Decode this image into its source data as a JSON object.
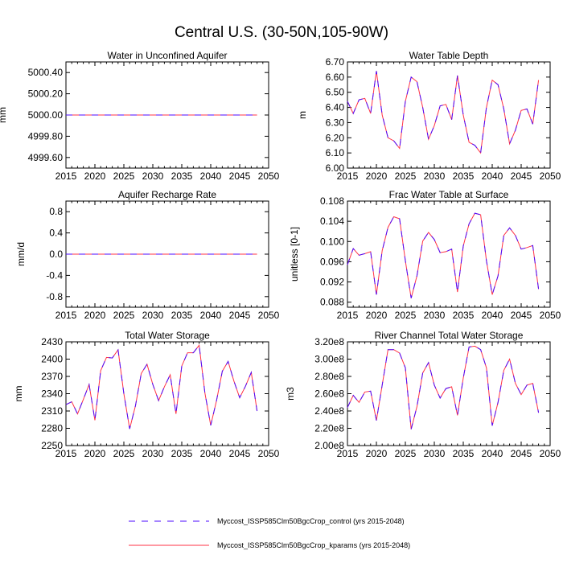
{
  "title": "Central U.S. (30-50N,105-90W)",
  "colors": {
    "control": "#4b0aff",
    "kparams": "#ff3344"
  },
  "legend": [
    {
      "label": "Myccost_ISSP585Clm50BgcCrop_control (yrs 2015-2048)",
      "style": "dashed",
      "color": "#4b0aff"
    },
    {
      "label": "Myccost_ISSP585Clm50BgcCrop_kparams (yrs 2015-2048)",
      "style": "solid",
      "color": "#ff3344"
    }
  ],
  "chart_data": [
    {
      "type": "line",
      "title": "Water in Unconfined Aquifer",
      "ylabel": "mm",
      "xlim": [
        2015,
        2050
      ],
      "xticks": [
        "2015",
        "2020",
        "2025",
        "2030",
        "2035",
        "2040",
        "2045",
        "2050"
      ],
      "ylim": [
        4999.5,
        5000.5
      ],
      "yticks": [
        4999.6,
        4999.8,
        5000.0,
        5000.2,
        5000.4
      ],
      "ytick_labels": [
        "4999.60",
        "4999.80",
        "5000.00",
        "5000.20",
        "5000.40"
      ],
      "x": [
        2015,
        2016,
        2017,
        2018,
        2019,
        2020,
        2021,
        2022,
        2023,
        2024,
        2025,
        2026,
        2027,
        2028,
        2029,
        2030,
        2031,
        2032,
        2033,
        2034,
        2035,
        2036,
        2037,
        2038,
        2039,
        2040,
        2041,
        2042,
        2043,
        2044,
        2045,
        2046,
        2047,
        2048
      ],
      "series": [
        {
          "name": "Myccost_ISSP585Clm50BgcCrop_control",
          "values": [
            5000,
            5000,
            5000,
            5000,
            5000,
            5000,
            5000,
            5000,
            5000,
            5000,
            5000,
            5000,
            5000,
            5000,
            5000,
            5000,
            5000,
            5000,
            5000,
            5000,
            5000,
            5000,
            5000,
            5000,
            5000,
            5000,
            5000,
            5000,
            5000,
            5000,
            5000,
            5000,
            5000,
            5000
          ]
        },
        {
          "name": "Myccost_ISSP585Clm50BgcCrop_kparams",
          "values": [
            5000,
            5000,
            5000,
            5000,
            5000,
            5000,
            5000,
            5000,
            5000,
            5000,
            5000,
            5000,
            5000,
            5000,
            5000,
            5000,
            5000,
            5000,
            5000,
            5000,
            5000,
            5000,
            5000,
            5000,
            5000,
            5000,
            5000,
            5000,
            5000,
            5000,
            5000,
            5000,
            5000,
            5000
          ]
        }
      ]
    },
    {
      "type": "line",
      "title": "Water Table Depth",
      "ylabel": "m",
      "xlim": [
        2015,
        2050
      ],
      "xticks": [
        "2015",
        "2020",
        "2025",
        "2030",
        "2035",
        "2040",
        "2045",
        "2050"
      ],
      "ylim": [
        6.0,
        6.7
      ],
      "yticks": [
        6.0,
        6.1,
        6.2,
        6.3,
        6.4,
        6.5,
        6.6,
        6.7
      ],
      "ytick_labels": [
        "6.00",
        "6.10",
        "6.20",
        "6.30",
        "6.40",
        "6.50",
        "6.60",
        "6.70"
      ],
      "x": [
        2015,
        2016,
        2017,
        2018,
        2019,
        2020,
        2021,
        2022,
        2023,
        2024,
        2025,
        2026,
        2027,
        2028,
        2029,
        2030,
        2031,
        2032,
        2033,
        2034,
        2035,
        2036,
        2037,
        2038,
        2039,
        2040,
        2041,
        2042,
        2043,
        2044,
        2045,
        2046,
        2047,
        2048
      ],
      "series": [
        {
          "name": "Myccost_ISSP585Clm50BgcCrop_control",
          "values": [
            6.44,
            6.36,
            6.45,
            6.46,
            6.36,
            6.64,
            6.35,
            6.2,
            6.18,
            6.13,
            6.44,
            6.6,
            6.57,
            6.4,
            6.19,
            6.28,
            6.41,
            6.42,
            6.32,
            6.61,
            6.35,
            6.17,
            6.15,
            6.1,
            6.4,
            6.58,
            6.55,
            6.39,
            6.16,
            6.25,
            6.38,
            6.39,
            6.29,
            6.58
          ]
        },
        {
          "name": "Myccost_ISSP585Clm50BgcCrop_kparams",
          "values": [
            6.44,
            6.36,
            6.45,
            6.46,
            6.36,
            6.64,
            6.35,
            6.2,
            6.18,
            6.13,
            6.44,
            6.6,
            6.57,
            6.4,
            6.19,
            6.28,
            6.41,
            6.42,
            6.32,
            6.61,
            6.35,
            6.17,
            6.15,
            6.1,
            6.4,
            6.58,
            6.55,
            6.39,
            6.16,
            6.25,
            6.38,
            6.39,
            6.29,
            6.58
          ]
        }
      ]
    },
    {
      "type": "line",
      "title": "Aquifer Recharge Rate",
      "ylabel": "mm/d",
      "xlim": [
        2015,
        2050
      ],
      "xticks": [
        "2015",
        "2020",
        "2025",
        "2030",
        "2035",
        "2040",
        "2045",
        "2050"
      ],
      "ylim": [
        -1.0,
        1.0
      ],
      "yticks": [
        -0.8,
        -0.4,
        0.0,
        0.4,
        0.8
      ],
      "ytick_labels": [
        "-0.8",
        "-0.4",
        "0.0",
        "0.4",
        "0.8"
      ],
      "x": [
        2015,
        2016,
        2017,
        2018,
        2019,
        2020,
        2021,
        2022,
        2023,
        2024,
        2025,
        2026,
        2027,
        2028,
        2029,
        2030,
        2031,
        2032,
        2033,
        2034,
        2035,
        2036,
        2037,
        2038,
        2039,
        2040,
        2041,
        2042,
        2043,
        2044,
        2045,
        2046,
        2047,
        2048
      ],
      "series": [
        {
          "name": "Myccost_ISSP585Clm50BgcCrop_control",
          "values": [
            0,
            0,
            0,
            0,
            0,
            0,
            0,
            0,
            0,
            0,
            0,
            0,
            0,
            0,
            0,
            0,
            0,
            0,
            0,
            0,
            0,
            0,
            0,
            0,
            0,
            0,
            0,
            0,
            0,
            0,
            0,
            0,
            0,
            0
          ]
        },
        {
          "name": "Myccost_ISSP585Clm50BgcCrop_kparams",
          "values": [
            0,
            0,
            0,
            0,
            0,
            0,
            0,
            0,
            0,
            0,
            0,
            0,
            0,
            0,
            0,
            0,
            0,
            0,
            0,
            0,
            0,
            0,
            0,
            0,
            0,
            0,
            0,
            0,
            0,
            0,
            0,
            0,
            0,
            0
          ]
        }
      ]
    },
    {
      "type": "line",
      "title": "Frac Water Table at Surface",
      "ylabel": "unitless [0-1]",
      "xlim": [
        2015,
        2050
      ],
      "xticks": [
        "2015",
        "2020",
        "2025",
        "2030",
        "2035",
        "2040",
        "2045",
        "2050"
      ],
      "ylim": [
        0.087,
        0.108
      ],
      "yticks": [
        0.088,
        0.092,
        0.096,
        0.1,
        0.104,
        0.108
      ],
      "ytick_labels": [
        "0.088",
        "0.092",
        "0.096",
        "0.100",
        "0.104",
        "0.108"
      ],
      "x": [
        2015,
        2016,
        2017,
        2018,
        2019,
        2020,
        2021,
        2022,
        2023,
        2024,
        2025,
        2026,
        2027,
        2028,
        2029,
        2030,
        2031,
        2032,
        2033,
        2034,
        2035,
        2036,
        2037,
        2038,
        2039,
        2040,
        2041,
        2042,
        2043,
        2044,
        2045,
        2046,
        2047,
        2048
      ],
      "series": [
        {
          "name": "Myccost_ISSP585Clm50BgcCrop_control",
          "values": [
            0.0954,
            0.0986,
            0.0973,
            0.0976,
            0.098,
            0.0895,
            0.0982,
            0.1028,
            0.1049,
            0.1045,
            0.0962,
            0.0888,
            0.0932,
            0.1001,
            0.1018,
            0.1004,
            0.0978,
            0.098,
            0.0985,
            0.09,
            0.0991,
            0.1035,
            0.1056,
            0.1053,
            0.0962,
            0.0895,
            0.0932,
            0.1012,
            0.1027,
            0.1012,
            0.0985,
            0.0988,
            0.0992,
            0.0906
          ]
        },
        {
          "name": "Myccost_ISSP585Clm50BgcCrop_kparams",
          "values": [
            0.0954,
            0.0986,
            0.0973,
            0.0976,
            0.098,
            0.0895,
            0.0982,
            0.1028,
            0.1049,
            0.1045,
            0.0962,
            0.0888,
            0.0932,
            0.1001,
            0.1018,
            0.1004,
            0.0978,
            0.098,
            0.0985,
            0.09,
            0.0991,
            0.1035,
            0.1056,
            0.1053,
            0.0962,
            0.0895,
            0.0932,
            0.1012,
            0.1027,
            0.1012,
            0.0985,
            0.0988,
            0.0992,
            0.0906
          ]
        }
      ]
    },
    {
      "type": "line",
      "title": "Total Water Storage",
      "ylabel": "mm",
      "xlim": [
        2015,
        2050
      ],
      "xticks": [
        "2015",
        "2020",
        "2025",
        "2030",
        "2035",
        "2040",
        "2045",
        "2050"
      ],
      "ylim": [
        2250,
        2430
      ],
      "yticks": [
        2250,
        2280,
        2310,
        2340,
        2370,
        2400,
        2430
      ],
      "ytick_labels": [
        "2250",
        "2280",
        "2310",
        "2340",
        "2370",
        "2400",
        "2430"
      ],
      "x": [
        2015,
        2016,
        2017,
        2018,
        2019,
        2020,
        2021,
        2022,
        2023,
        2024,
        2025,
        2026,
        2027,
        2028,
        2029,
        2030,
        2031,
        2032,
        2033,
        2034,
        2035,
        2036,
        2037,
        2038,
        2039,
        2040,
        2041,
        2042,
        2043,
        2044,
        2045,
        2046,
        2047,
        2048
      ],
      "series": [
        {
          "name": "Myccost_ISSP585Clm50BgcCrop_control",
          "values": [
            2321,
            2326,
            2305,
            2330,
            2356,
            2294,
            2380,
            2403,
            2402,
            2416,
            2340,
            2279,
            2319,
            2375,
            2391,
            2356,
            2328,
            2352,
            2373,
            2305,
            2388,
            2411,
            2411,
            2424,
            2341,
            2285,
            2328,
            2379,
            2396,
            2362,
            2333,
            2353,
            2377,
            2310
          ]
        },
        {
          "name": "Myccost_ISSP585Clm50BgcCrop_kparams",
          "values": [
            2321,
            2326,
            2305,
            2330,
            2356,
            2294,
            2380,
            2403,
            2402,
            2416,
            2340,
            2279,
            2319,
            2375,
            2391,
            2356,
            2328,
            2352,
            2373,
            2305,
            2388,
            2411,
            2411,
            2424,
            2341,
            2285,
            2328,
            2379,
            2396,
            2362,
            2333,
            2353,
            2377,
            2310
          ]
        }
      ]
    },
    {
      "type": "line",
      "title": "River Channel Total Water Storage",
      "ylabel": "m3",
      "xlim": [
        2015,
        2050
      ],
      "xticks": [
        "2015",
        "2020",
        "2025",
        "2030",
        "2035",
        "2040",
        "2045",
        "2050"
      ],
      "ylim": [
        200000000,
        320000000
      ],
      "yticks": [
        200000000,
        220000000,
        240000000,
        260000000,
        280000000,
        300000000,
        320000000
      ],
      "ytick_labels": [
        "2.00e8",
        "2.20e8",
        "2.40e8",
        "2.60e8",
        "2.80e8",
        "3.00e8",
        "3.20e8"
      ],
      "x": [
        2015,
        2016,
        2017,
        2018,
        2019,
        2020,
        2021,
        2022,
        2023,
        2024,
        2025,
        2026,
        2027,
        2028,
        2029,
        2030,
        2031,
        2032,
        2033,
        2034,
        2035,
        2036,
        2037,
        2038,
        2039,
        2040,
        2041,
        2042,
        2043,
        2044,
        2045,
        2046,
        2047,
        2048
      ],
      "series": [
        {
          "name": "Myccost_ISSP585Clm50BgcCrop_control",
          "values": [
            244000000,
            258000000,
            250000000,
            262000000,
            263000000,
            229000000,
            270000000,
            311000000,
            311000000,
            307000000,
            290000000,
            219000000,
            245000000,
            284000000,
            296000000,
            270000000,
            255000000,
            266000000,
            268000000,
            235000000,
            278000000,
            314000000,
            315000000,
            311000000,
            290000000,
            223000000,
            250000000,
            287000000,
            300000000,
            272000000,
            259000000,
            270000000,
            272000000,
            238000000
          ]
        },
        {
          "name": "Myccost_ISSP585Clm50BgcCrop_kparams",
          "values": [
            244000000,
            258000000,
            250000000,
            262000000,
            263000000,
            229000000,
            270000000,
            311000000,
            311000000,
            307000000,
            290000000,
            219000000,
            245000000,
            284000000,
            296000000,
            270000000,
            255000000,
            266000000,
            268000000,
            235000000,
            278000000,
            314000000,
            315000000,
            311000000,
            290000000,
            223000000,
            250000000,
            287000000,
            300000000,
            272000000,
            259000000,
            270000000,
            272000000,
            238000000
          ]
        }
      ]
    }
  ]
}
